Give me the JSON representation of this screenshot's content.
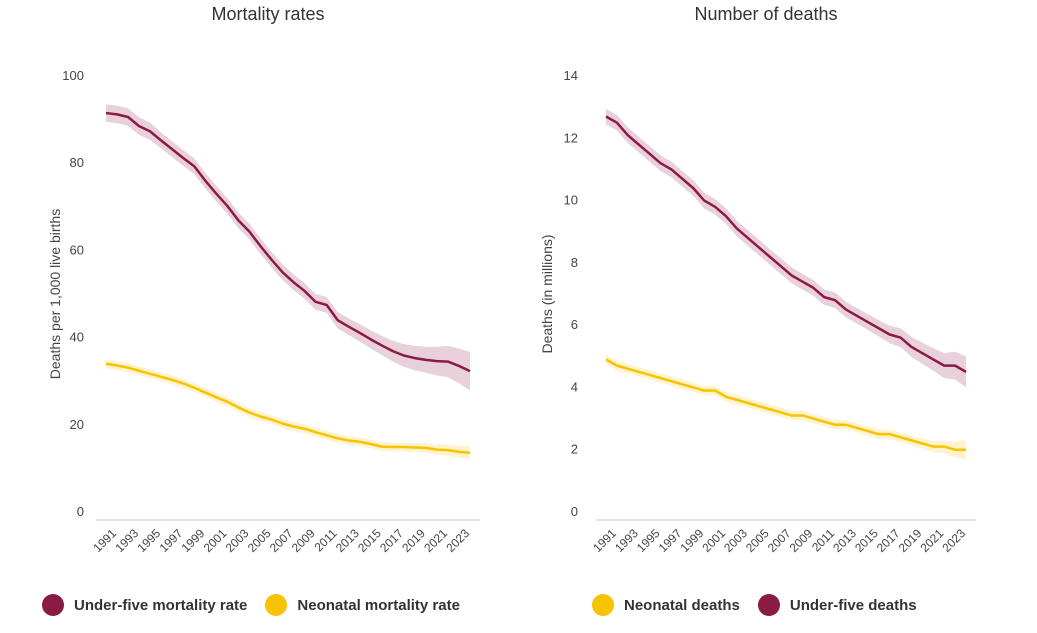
{
  "colors": {
    "under_five": "#8b1a45",
    "neonatal": "#f7c200",
    "axis_text": "#444444",
    "axis_line": "#cccccc"
  },
  "chart_data": [
    {
      "type": "line",
      "title": "Mortality rates",
      "ylabel": "Deaths per 1,000 live births",
      "xlabel": "",
      "ylim": [
        0,
        100
      ],
      "yticks": [
        0,
        20,
        40,
        60,
        80,
        100
      ],
      "xlim": [
        1990,
        2023
      ],
      "xticks": [
        "1991",
        "1993",
        "1995",
        "1997",
        "1999",
        "2001",
        "2003",
        "2005",
        "2007",
        "2009",
        "2011",
        "2013",
        "2015",
        "2017",
        "2019",
        "2021",
        "2023"
      ],
      "x": [
        1990,
        1991,
        1992,
        1993,
        1994,
        1995,
        1996,
        1997,
        1998,
        1999,
        2000,
        2001,
        2002,
        2003,
        2004,
        2005,
        2006,
        2007,
        2008,
        2009,
        2010,
        2011,
        2012,
        2013,
        2014,
        2015,
        2016,
        2017,
        2018,
        2019,
        2020,
        2021,
        2022,
        2023
      ],
      "series": [
        {
          "name": "Under-five mortality rate",
          "color": "under_five",
          "values": [
            91.5,
            91.2,
            90.6,
            88.5,
            87.3,
            85.2,
            83.2,
            81.2,
            79.3,
            76.0,
            73.0,
            70.2,
            66.9,
            64.3,
            61.0,
            57.9,
            55.0,
            52.7,
            50.7,
            48.2,
            47.5,
            44.0,
            42.5,
            41.1,
            39.6,
            38.2,
            36.9,
            35.9,
            35.3,
            34.9,
            34.6,
            34.5,
            33.5,
            32.3
          ],
          "band": [
            2.0,
            2.0,
            2.0,
            2.0,
            2.0,
            1.8,
            1.8,
            1.8,
            1.8,
            1.8,
            1.8,
            1.8,
            1.8,
            1.8,
            1.8,
            1.8,
            1.8,
            1.8,
            1.8,
            1.8,
            1.8,
            1.9,
            1.9,
            2.0,
            2.1,
            2.2,
            2.4,
            2.6,
            2.8,
            3.0,
            3.3,
            3.6,
            4.0,
            4.4
          ]
        },
        {
          "name": "Neonatal mortality rate",
          "color": "neonatal",
          "values": [
            34.0,
            33.6,
            33.1,
            32.4,
            31.7,
            31.0,
            30.3,
            29.5,
            28.5,
            27.4,
            26.3,
            25.3,
            24.0,
            22.8,
            21.9,
            21.2,
            20.3,
            19.6,
            19.1,
            18.3,
            17.6,
            16.9,
            16.4,
            16.1,
            15.6,
            15.0,
            14.9,
            14.9,
            14.8,
            14.7,
            14.3,
            14.2,
            13.8,
            13.6
          ],
          "band": [
            1.0,
            1.0,
            1.0,
            1.0,
            1.0,
            1.0,
            1.0,
            1.0,
            1.0,
            1.0,
            1.0,
            1.0,
            1.0,
            1.0,
            1.0,
            1.0,
            1.0,
            1.0,
            1.0,
            1.0,
            1.0,
            1.0,
            1.0,
            1.0,
            1.0,
            1.0,
            1.0,
            1.0,
            1.0,
            1.1,
            1.2,
            1.3,
            1.4,
            1.5
          ]
        }
      ],
      "legend": [
        "Under-five mortality rate",
        "Neonatal mortality rate"
      ]
    },
    {
      "type": "line",
      "title": "Number of deaths",
      "ylabel": "Deaths (in millions)",
      "xlabel": "",
      "ylim": [
        0,
        14
      ],
      "yticks": [
        0,
        2,
        4,
        6,
        8,
        10,
        12,
        14
      ],
      "xlim": [
        1990,
        2023
      ],
      "xticks": [
        "1991",
        "1993",
        "1995",
        "1997",
        "1999",
        "2001",
        "2003",
        "2005",
        "2007",
        "2009",
        "2011",
        "2013",
        "2015",
        "2017",
        "2019",
        "2021",
        "2023"
      ],
      "x": [
        1990,
        1991,
        1992,
        1993,
        1994,
        1995,
        1996,
        1997,
        1998,
        1999,
        2000,
        2001,
        2002,
        2003,
        2004,
        2005,
        2006,
        2007,
        2008,
        2009,
        2010,
        2011,
        2012,
        2013,
        2014,
        2015,
        2016,
        2017,
        2018,
        2019,
        2020,
        2021,
        2022,
        2023
      ],
      "series": [
        {
          "name": "Neonatal deaths",
          "color": "neonatal",
          "values": [
            4.9,
            4.7,
            4.6,
            4.5,
            4.4,
            4.3,
            4.2,
            4.1,
            4.0,
            3.9,
            3.9,
            3.7,
            3.6,
            3.5,
            3.4,
            3.3,
            3.2,
            3.1,
            3.1,
            3.0,
            2.9,
            2.8,
            2.8,
            2.7,
            2.6,
            2.5,
            2.5,
            2.4,
            2.3,
            2.2,
            2.1,
            2.1,
            2.0,
            2.0
          ],
          "band": [
            0.15,
            0.15,
            0.15,
            0.15,
            0.15,
            0.15,
            0.15,
            0.15,
            0.15,
            0.15,
            0.15,
            0.15,
            0.15,
            0.15,
            0.15,
            0.15,
            0.15,
            0.15,
            0.15,
            0.15,
            0.15,
            0.15,
            0.15,
            0.15,
            0.15,
            0.15,
            0.15,
            0.15,
            0.15,
            0.16,
            0.18,
            0.2,
            0.25,
            0.3
          ]
        },
        {
          "name": "Under-five deaths",
          "color": "under_five",
          "values": [
            12.7,
            12.5,
            12.1,
            11.8,
            11.5,
            11.2,
            11.0,
            10.7,
            10.4,
            10.0,
            9.8,
            9.5,
            9.1,
            8.8,
            8.5,
            8.2,
            7.9,
            7.6,
            7.4,
            7.2,
            6.9,
            6.8,
            6.5,
            6.3,
            6.1,
            5.9,
            5.7,
            5.6,
            5.3,
            5.1,
            4.9,
            4.7,
            4.7,
            4.5
          ],
          "band": [
            0.25,
            0.25,
            0.25,
            0.25,
            0.25,
            0.25,
            0.25,
            0.25,
            0.25,
            0.25,
            0.25,
            0.25,
            0.25,
            0.25,
            0.25,
            0.25,
            0.25,
            0.25,
            0.25,
            0.25,
            0.25,
            0.25,
            0.25,
            0.25,
            0.25,
            0.26,
            0.28,
            0.3,
            0.32,
            0.34,
            0.36,
            0.4,
            0.45,
            0.5
          ]
        }
      ],
      "legend": [
        "Neonatal deaths",
        "Under-five deaths"
      ]
    }
  ]
}
